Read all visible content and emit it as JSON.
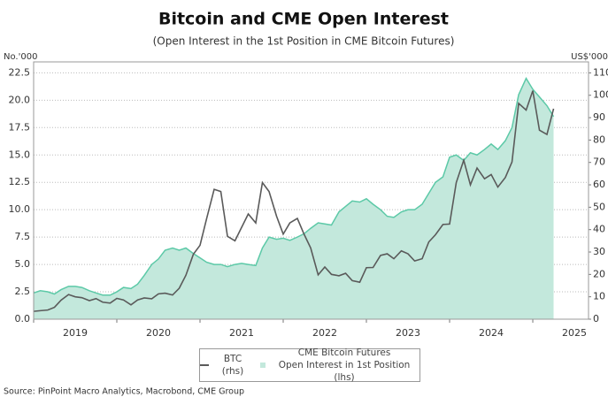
{
  "chart_data": {
    "type": "line",
    "title": "Bitcoin and CME Open Interest",
    "subtitle": "(Open Interest in the 1st Position in CME Bitcoin Futures)",
    "y_label": "No.'000",
    "y2_label": "US$'000",
    "source": "Source: PinPoint Macro Analytics, Macrobond, CME Group",
    "x": [
      2019.0,
      2019.08,
      2019.17,
      2019.25,
      2019.33,
      2019.42,
      2019.5,
      2019.58,
      2019.67,
      2019.75,
      2019.83,
      2019.92,
      2020.0,
      2020.08,
      2020.17,
      2020.25,
      2020.33,
      2020.42,
      2020.5,
      2020.58,
      2020.67,
      2020.75,
      2020.83,
      2020.92,
      2021.0,
      2021.08,
      2021.17,
      2021.25,
      2021.33,
      2021.42,
      2021.5,
      2021.58,
      2021.67,
      2021.75,
      2021.83,
      2021.92,
      2022.0,
      2022.08,
      2022.17,
      2022.25,
      2022.33,
      2022.42,
      2022.5,
      2022.58,
      2022.67,
      2022.75,
      2022.83,
      2022.92,
      2023.0,
      2023.08,
      2023.17,
      2023.25,
      2023.33,
      2023.42,
      2023.5,
      2023.58,
      2023.67,
      2023.75,
      2023.83,
      2023.92,
      2024.0,
      2024.08,
      2024.17,
      2024.25,
      2024.33,
      2024.42,
      2024.5,
      2024.58,
      2024.67,
      2024.75,
      2024.83,
      2024.92,
      2025.0,
      2025.08,
      2025.17,
      2025.25
    ],
    "series": [
      {
        "name": "CME Bitcoin Futures\nOpen Interest in 1st Position (lhs)",
        "type": "area",
        "color": "#5cc9a7",
        "fill": "#c3e8dc",
        "values": [
          2.4,
          2.6,
          2.5,
          2.3,
          2.7,
          3.0,
          3.0,
          2.9,
          2.6,
          2.4,
          2.2,
          2.2,
          2.5,
          2.9,
          2.8,
          3.2,
          4.0,
          5.0,
          5.5,
          6.3,
          6.5,
          6.3,
          6.5,
          6.0,
          5.6,
          5.2,
          5.0,
          5.0,
          4.8,
          5.0,
          5.1,
          5.0,
          4.9,
          6.5,
          7.5,
          7.3,
          7.4,
          7.2,
          7.5,
          7.8,
          8.3,
          8.8,
          8.7,
          8.6,
          9.8,
          10.3,
          10.8,
          10.7,
          11.0,
          10.5,
          10.0,
          9.4,
          9.3,
          9.8,
          10.0,
          10.0,
          10.5,
          11.5,
          12.5,
          13.0,
          14.8,
          15.0,
          14.5,
          15.2,
          15.0,
          15.5,
          16.0,
          15.5,
          16.3,
          17.5,
          20.5,
          22.0,
          21.0,
          20.3,
          19.5,
          18.5
        ]
      },
      {
        "name": "BTC (rhs)",
        "type": "line",
        "axis": "y2",
        "color": "#5a5a5a",
        "values": [
          3.5,
          3.8,
          4.1,
          5.3,
          8.5,
          11,
          10,
          9.6,
          8.3,
          9.2,
          7.6,
          7.2,
          9.3,
          8.6,
          6.4,
          8.6,
          9.5,
          9.1,
          11.3,
          11.6,
          10.8,
          13.8,
          19.6,
          29,
          33,
          45,
          58,
          57,
          37,
          35,
          41,
          47,
          43,
          61,
          57,
          46,
          38,
          43,
          45,
          38,
          31.8,
          19.8,
          23.3,
          20,
          19.4,
          20.5,
          17.2,
          16.5,
          23,
          23.1,
          28.5,
          29.2,
          27,
          30.5,
          29.2,
          26,
          27,
          34.5,
          37.7,
          42.3,
          42.5,
          61,
          71,
          60,
          67.5,
          62.7,
          64.6,
          59,
          63.3,
          70.2,
          96.4,
          93.4,
          102,
          84.4,
          82.5,
          94
        ]
      }
    ],
    "xlim": [
      2019,
      2025.67
    ],
    "xticks": [
      2019,
      2020,
      2021,
      2022,
      2023,
      2024,
      2025
    ],
    "ylim": [
      0,
      23.5
    ],
    "yticks": [
      {
        "value": 0,
        "label": "0.0"
      },
      2.5,
      {
        "value": 5,
        "label": "5.0"
      },
      7.5,
      {
        "value": 10,
        "label": "10.0"
      },
      12.5,
      {
        "value": 15,
        "label": "15.0"
      },
      17.5,
      {
        "value": 20,
        "label": "20.0"
      },
      22.5
    ],
    "y2lim": [
      0,
      114.9
    ],
    "y2ticks": [
      0,
      10,
      20,
      30,
      40,
      50,
      60,
      70,
      80,
      90,
      100,
      110
    ],
    "grid": true,
    "legend": "bottom"
  }
}
